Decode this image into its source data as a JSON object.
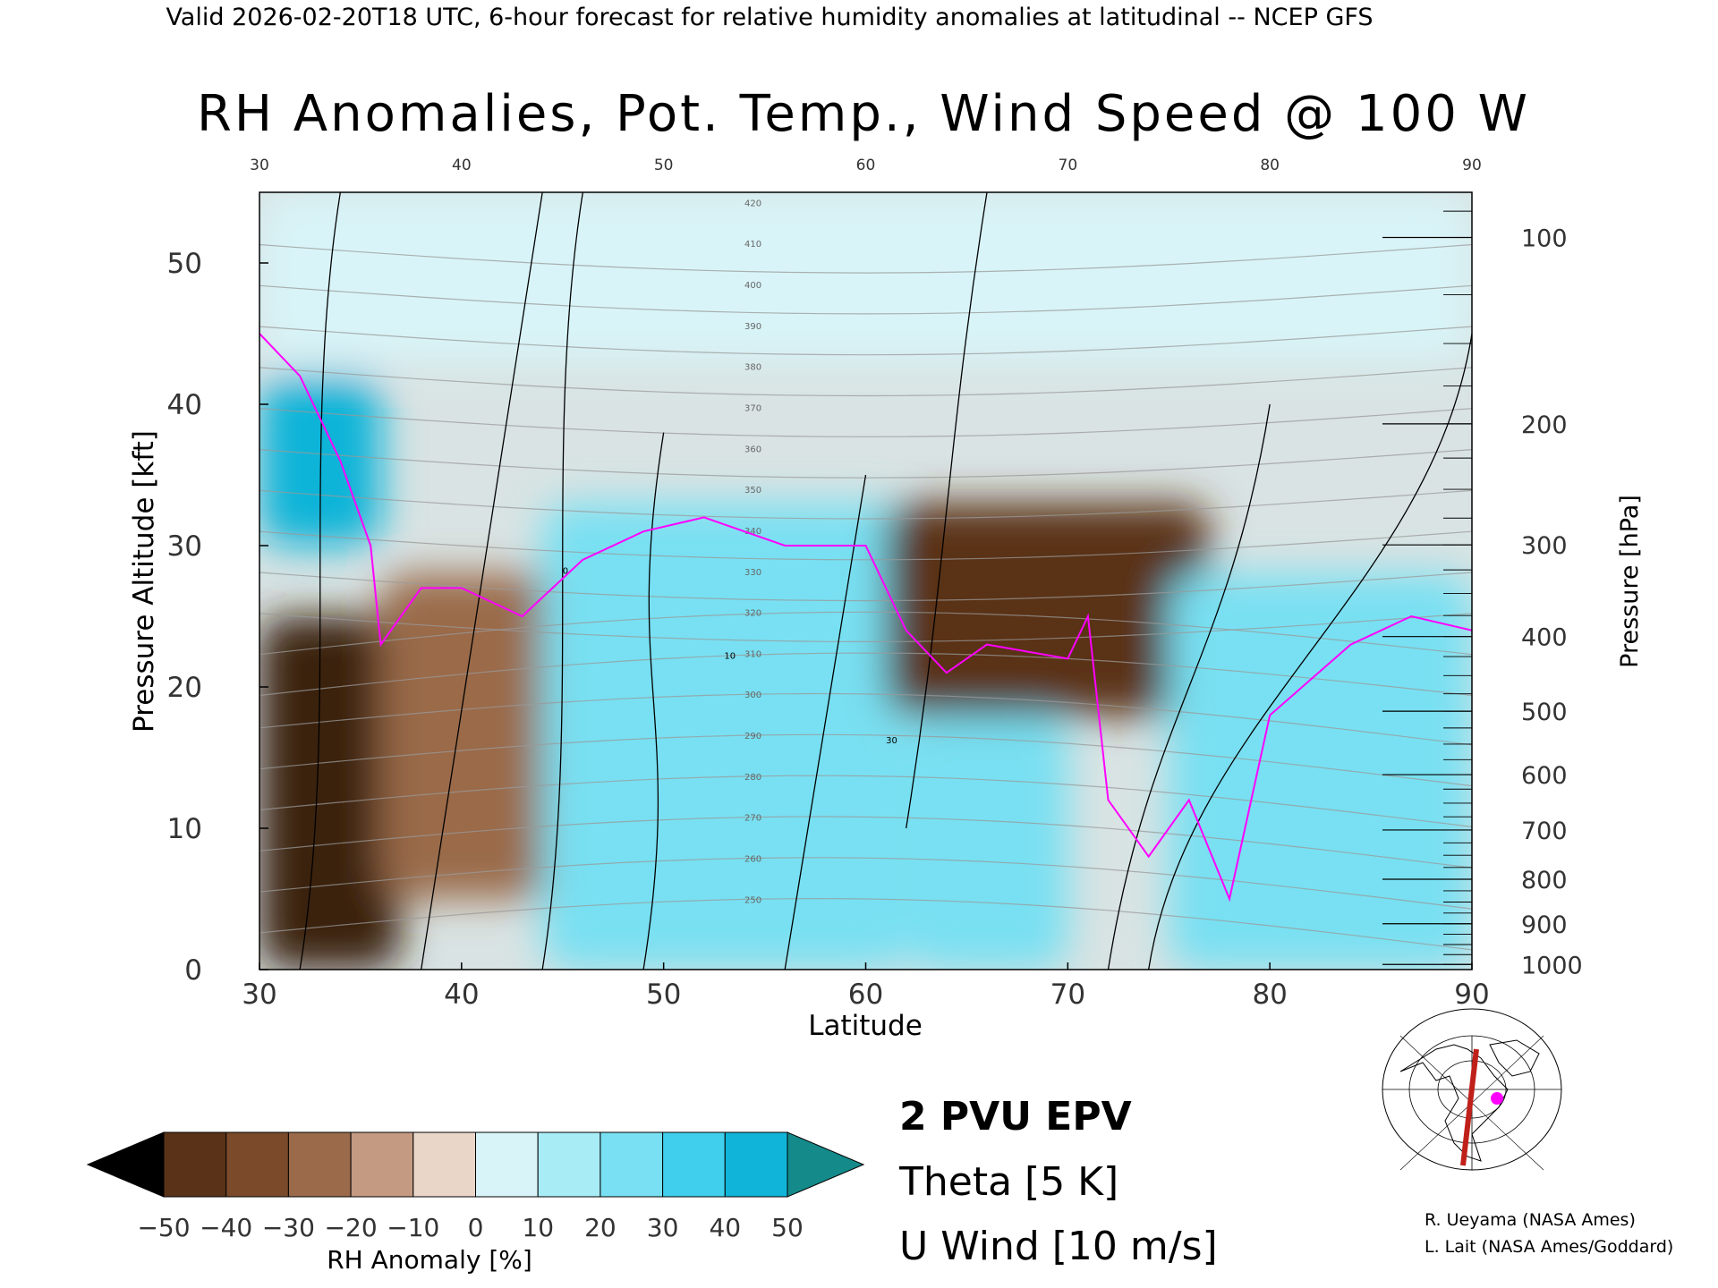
{
  "header": {
    "valid_line": "Valid 2026-02-20T18 UTC, 6-hour forecast for relative humidity anomalies at latitudinal -- NCEP GFS",
    "title": "RH Anomalies, Pot. Temp., Wind Speed @ 100 W"
  },
  "axes": {
    "xlabel": "Latitude",
    "ylabel_left": "Pressure Altitude [kft]",
    "ylabel_right": "Pressure [hPa]",
    "x_ticks": [
      "30",
      "40",
      "50",
      "60",
      "70",
      "80",
      "90"
    ],
    "top_ticks": [
      "30",
      "40",
      "50",
      "60",
      "70",
      "80",
      "90"
    ],
    "left_ticks": [
      "0",
      "10",
      "20",
      "30",
      "40",
      "50"
    ],
    "right_ticks": [
      "100",
      "200",
      "300",
      "400",
      "500",
      "600",
      "700",
      "800",
      "900",
      "1000"
    ]
  },
  "colorbar": {
    "label": "RH Anomaly [%]",
    "tick_labels": [
      "−50",
      "−40",
      "−30",
      "−20",
      "−10",
      "0",
      "10",
      "20",
      "30",
      "40",
      "50"
    ],
    "colors": [
      "#3a2210",
      "#5a3218",
      "#7a4a2a",
      "#9a6a4a",
      "#c49a82",
      "#ead6c9",
      "#d8f4f8",
      "#a8ecf6",
      "#78e0f2",
      "#40cfec",
      "#10b4d8",
      "#0a8aa8"
    ],
    "under_color": "#000000",
    "over_color": "#148a8a"
  },
  "legend": {
    "epv": "2 PVU EPV",
    "theta": "Theta [5 K]",
    "uwind": "U Wind [10 m/s]",
    "epv_color": "#ff00ff",
    "theta_color": "#9a9a9a",
    "uwind_color": "#000000"
  },
  "credits": {
    "line1": "R. Ueyama (NASA Ames)",
    "line2": "L. Lait (NASA Ames/Goddard)"
  },
  "inset_map": {
    "icon": "polar-map-icon",
    "section_color": "#c0201a",
    "marker_color": "#ff00ff"
  },
  "chart_data": {
    "type": "contour",
    "title": "RH Anomalies, Pot. Temp., Wind Speed @ 100 W",
    "xlabel": "Latitude",
    "ylabel": "Pressure Altitude [kft]",
    "xlim": [
      30,
      90
    ],
    "ylim": [
      0,
      55
    ],
    "rh_anomaly_regions": [
      {
        "lat": [
          30,
          37
        ],
        "kft": [
          0,
          25
        ],
        "anomaly_pct": -45
      },
      {
        "lat": [
          36,
          47
        ],
        "kft": [
          5,
          28
        ],
        "anomaly_pct": -20
      },
      {
        "lat": [
          30,
          36
        ],
        "kft": [
          30,
          42
        ],
        "anomaly_pct": 40
      },
      {
        "lat": [
          44,
          62
        ],
        "kft": [
          0,
          33
        ],
        "anomaly_pct": 25
      },
      {
        "lat": [
          61,
          77
        ],
        "kft": [
          18,
          33
        ],
        "anomaly_pct": -40
      },
      {
        "lat": [
          62,
          70
        ],
        "kft": [
          0,
          18
        ],
        "anomaly_pct": 20
      },
      {
        "lat": [
          75,
          90
        ],
        "kft": [
          0,
          28
        ],
        "anomaly_pct": 20
      },
      {
        "lat": [
          30,
          90
        ],
        "kft": [
          43,
          55
        ],
        "anomaly_pct": 0
      }
    ],
    "theta_contour_labels_K": [
      250,
      260,
      270,
      280,
      290,
      300,
      310,
      320,
      330,
      340,
      350,
      360,
      370,
      380,
      390,
      400,
      410,
      420
    ],
    "uwind_contour_labels": [
      0,
      10,
      30
    ],
    "epv_2pvu_line": [
      {
        "lat": 30,
        "kft": 45
      },
      {
        "lat": 32,
        "kft": 42
      },
      {
        "lat": 34,
        "kft": 36
      },
      {
        "lat": 35.5,
        "kft": 30
      },
      {
        "lat": 36,
        "kft": 23
      },
      {
        "lat": 38,
        "kft": 27
      },
      {
        "lat": 40,
        "kft": 27
      },
      {
        "lat": 43,
        "kft": 25
      },
      {
        "lat": 46,
        "kft": 29
      },
      {
        "lat": 49,
        "kft": 31
      },
      {
        "lat": 52,
        "kft": 32
      },
      {
        "lat": 56,
        "kft": 30
      },
      {
        "lat": 60,
        "kft": 30
      },
      {
        "lat": 62,
        "kft": 24
      },
      {
        "lat": 64,
        "kft": 21
      },
      {
        "lat": 66,
        "kft": 23
      },
      {
        "lat": 70,
        "kft": 22
      },
      {
        "lat": 71,
        "kft": 25
      },
      {
        "lat": 72,
        "kft": 12
      },
      {
        "lat": 74,
        "kft": 8
      },
      {
        "lat": 76,
        "kft": 12
      },
      {
        "lat": 78,
        "kft": 5
      },
      {
        "lat": 80,
        "kft": 18
      },
      {
        "lat": 84,
        "kft": 23
      },
      {
        "lat": 87,
        "kft": 25
      },
      {
        "lat": 90,
        "kft": 24
      }
    ]
  }
}
